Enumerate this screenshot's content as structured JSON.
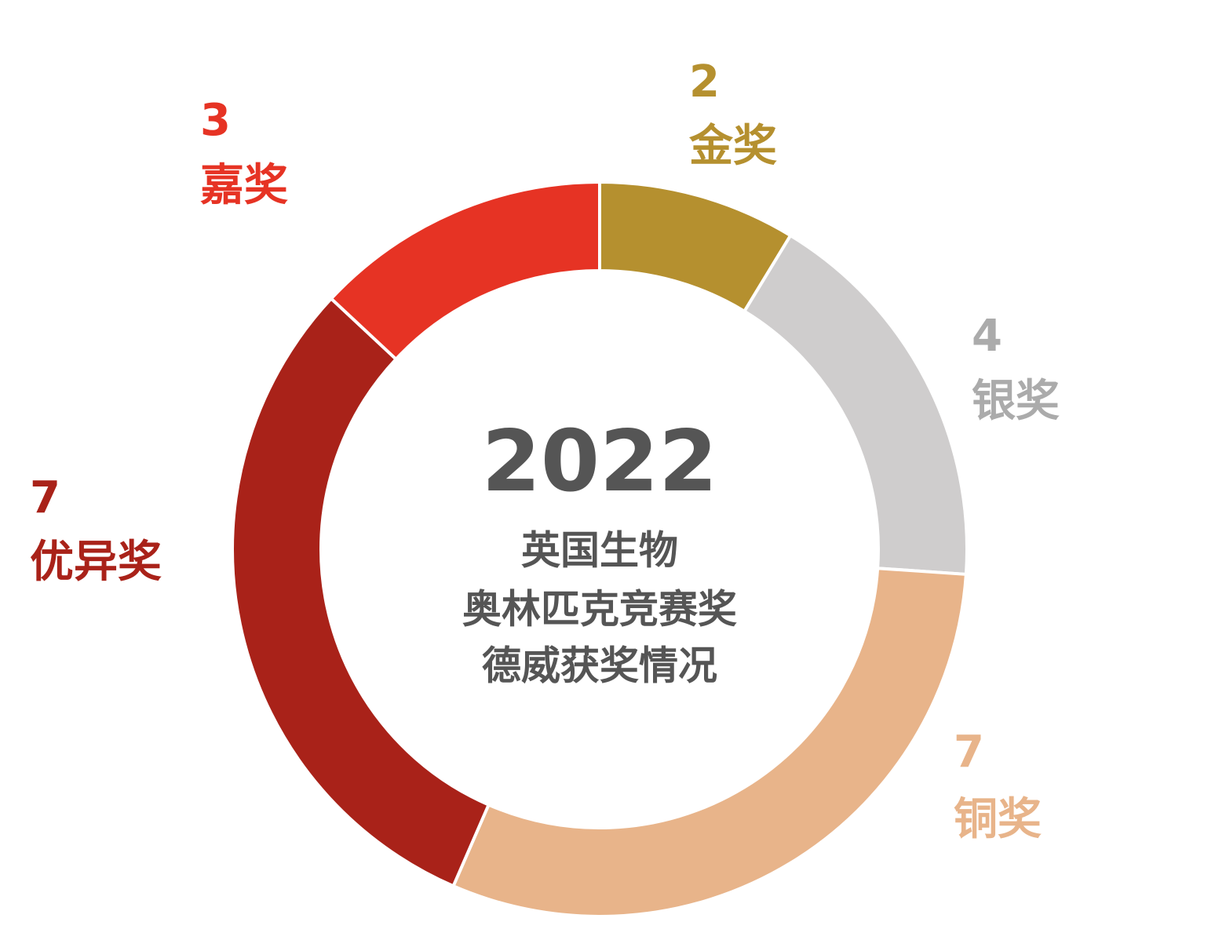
{
  "chart_data": {
    "type": "donut",
    "title": "2022",
    "subtitle": [
      "英国生物",
      "奥林匹克竞赛奖",
      "德威获奖情况"
    ],
    "categories": [
      "金奖",
      "银奖",
      "铜奖",
      "优异奖",
      "嘉奖"
    ],
    "values": [
      2,
      4,
      7,
      7,
      3
    ],
    "colors": [
      "#b5902f",
      "#cfcdcd",
      "#e8b48a",
      "#a92219",
      "#e63324"
    ],
    "label_colors": [
      "#b5902f",
      "#ababab",
      "#e8b48a",
      "#a92219",
      "#e63324"
    ]
  }
}
